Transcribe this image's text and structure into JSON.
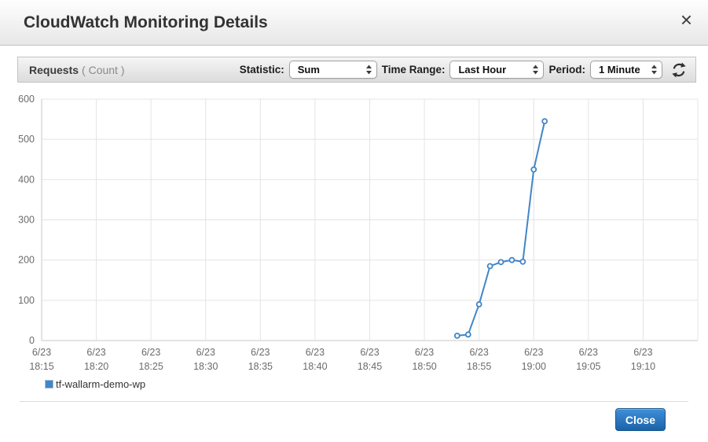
{
  "dialog": {
    "title": "CloudWatch Monitoring Details",
    "close_icon": "×"
  },
  "toolbar": {
    "metric_label": "Requests",
    "metric_unit": "( Count )",
    "statistic_label": "Statistic:",
    "statistic_value": "Sum",
    "time_range_label": "Time Range:",
    "time_range_value": "Last Hour",
    "period_label": "Period:",
    "period_value": "1 Minute"
  },
  "chart_data": {
    "type": "line",
    "metric": "Requests",
    "unit": "Count",
    "ylim": [
      0,
      600
    ],
    "y_ticks": [
      0,
      100,
      200,
      300,
      400,
      500,
      600
    ],
    "x_ticks": [
      {
        "date": "6/23",
        "time": "18:15"
      },
      {
        "date": "6/23",
        "time": "18:20"
      },
      {
        "date": "6/23",
        "time": "18:25"
      },
      {
        "date": "6/23",
        "time": "18:30"
      },
      {
        "date": "6/23",
        "time": "18:35"
      },
      {
        "date": "6/23",
        "time": "18:40"
      },
      {
        "date": "6/23",
        "time": "18:45"
      },
      {
        "date": "6/23",
        "time": "18:50"
      },
      {
        "date": "6/23",
        "time": "18:55"
      },
      {
        "date": "6/23",
        "time": "19:00"
      },
      {
        "date": "6/23",
        "time": "19:05"
      },
      {
        "date": "6/23",
        "time": "19:10"
      }
    ],
    "minutes_per_tick": 5,
    "x_start_time": "6/23 18:15",
    "grid": true,
    "legend_position": "bottom-left",
    "series": [
      {
        "name": "tf-wallarm-demo-wp",
        "color": "#4186c6",
        "points": [
          {
            "time": "18:53",
            "minutes_from_start": 38,
            "value": 12
          },
          {
            "time": "18:54",
            "minutes_from_start": 39,
            "value": 15
          },
          {
            "time": "18:55",
            "minutes_from_start": 40,
            "value": 90
          },
          {
            "time": "18:56",
            "minutes_from_start": 41,
            "value": 185
          },
          {
            "time": "18:57",
            "minutes_from_start": 42,
            "value": 195
          },
          {
            "time": "18:58",
            "minutes_from_start": 43,
            "value": 200
          },
          {
            "time": "18:59",
            "minutes_from_start": 44,
            "value": 196
          },
          {
            "time": "19:00",
            "minutes_from_start": 45,
            "value": 425
          },
          {
            "time": "19:01",
            "minutes_from_start": 46,
            "value": 545
          }
        ]
      }
    ]
  },
  "footer": {
    "close_label": "Close"
  },
  "colors": {
    "series_blue": "#4186c6",
    "button_blue_top": "#3f8fd9",
    "button_blue_bottom": "#1b63a8",
    "grid_line": "#e4e4e4",
    "axis_line": "#c9c9c9",
    "tick_text": "#6b6b6b"
  }
}
